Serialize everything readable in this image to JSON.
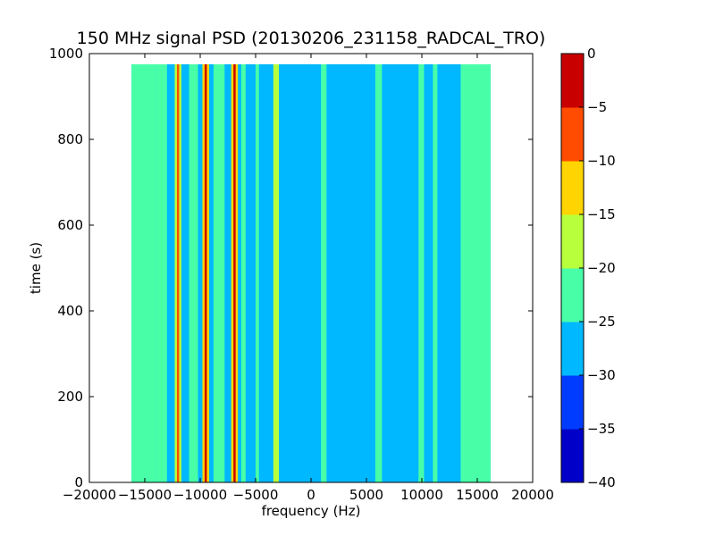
{
  "chart_data": {
    "type": "heatmap",
    "title": "150 MHz signal PSD (20130206_231158_RADCAL_TRO)",
    "xlabel": "frequency (Hz)",
    "ylabel": "time (s)",
    "xlim": [
      -20000,
      20000
    ],
    "ylim": [
      0,
      1000
    ],
    "x_ticks": [
      -20000,
      -15000,
      -10000,
      -5000,
      0,
      5000,
      10000,
      15000,
      20000
    ],
    "x_tick_labels": [
      "−20000",
      "−15000",
      "−10000",
      "−5000",
      "0",
      "5000",
      "10000",
      "15000",
      "20000"
    ],
    "y_ticks": [
      0,
      200,
      400,
      600,
      800,
      1000
    ],
    "y_tick_labels": [
      "0",
      "200",
      "400",
      "600",
      "800",
      "1000"
    ],
    "data_extent": {
      "freq": [
        -16200,
        16200
      ],
      "time": [
        0,
        975
      ]
    },
    "colorbar": {
      "levels": [
        -40,
        -35,
        -30,
        -25,
        -20,
        -15,
        -10,
        -5,
        0
      ],
      "tick_labels": [
        "−40",
        "−35",
        "−30",
        "−25",
        "−20",
        "−15",
        "−10",
        "−5",
        "0"
      ],
      "colors": [
        "#0000c8",
        "#003cff",
        "#00b8ff",
        "#48ffa8",
        "#b8ff3c",
        "#ffd400",
        "#ff4c00",
        "#c80000"
      ]
    },
    "background_level": -27.5,
    "features": [
      {
        "freq_range": [
          -16200,
          -14000
        ],
        "level": -22.5
      },
      {
        "freq_range": [
          -14000,
          -13000
        ],
        "level": -22.5
      },
      {
        "freq_range": [
          -12300,
          -11700
        ],
        "level": -17.5
      },
      {
        "freq_range": [
          -12100,
          -11900
        ],
        "level": -7.5
      },
      {
        "freq_range": [
          -11000,
          -10200
        ],
        "level": -22.5
      },
      {
        "freq_range": [
          -9800,
          -9200
        ],
        "level": -12.5
      },
      {
        "freq_range": [
          -9600,
          -9400
        ],
        "level": -2.5
      },
      {
        "freq_range": [
          -8800,
          -7800
        ],
        "level": -22.5
      },
      {
        "freq_range": [
          -7200,
          -6600
        ],
        "level": -12.5
      },
      {
        "freq_range": [
          -7000,
          -6800
        ],
        "level": -2.5
      },
      {
        "freq_range": [
          -6300,
          -5900
        ],
        "level": -22.5
      },
      {
        "freq_range": [
          -5000,
          -4700
        ],
        "level": -22.5
      },
      {
        "freq_range": [
          -3400,
          -2900
        ],
        "level": -17.5
      },
      {
        "freq_range": [
          900,
          1400
        ],
        "level": -22.5
      },
      {
        "freq_range": [
          5800,
          6400
        ],
        "level": -22.5
      },
      {
        "freq_range": [
          9700,
          10200
        ],
        "level": -22.5
      },
      {
        "freq_range": [
          11000,
          11400
        ],
        "level": -22.5
      },
      {
        "freq_range": [
          13500,
          16200
        ],
        "level": -22.5
      }
    ]
  }
}
